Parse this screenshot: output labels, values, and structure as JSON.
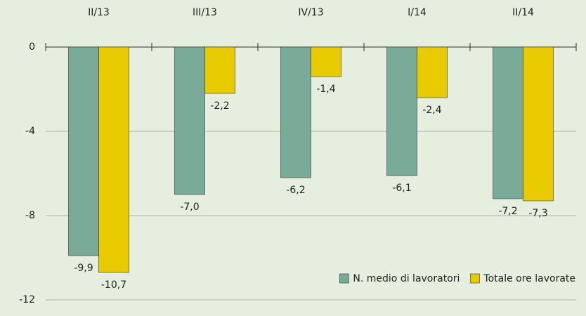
{
  "chart_data": {
    "type": "bar",
    "categories": [
      "II/13",
      "III/13",
      "IV/13",
      "I/14",
      "II/14"
    ],
    "series": [
      {
        "name": "N. medio di lavoratori",
        "color": "#7aab98",
        "values": [
          -9.9,
          -7.0,
          -6.2,
          -6.1,
          -7.2
        ],
        "value_labels": [
          "-9,9",
          "-7,0",
          "-6,2",
          "-6,1",
          "-7,2"
        ]
      },
      {
        "name": "Totale ore lavorate",
        "color": "#e8cb00",
        "values": [
          -10.7,
          -2.2,
          -1.4,
          -2.4,
          -7.3
        ],
        "value_labels": [
          "-10,7",
          "-2,2",
          "-1,4",
          "-2,4",
          "-7,3"
        ]
      }
    ],
    "ylim": [
      -12,
      0
    ],
    "yticks": [
      0,
      -4,
      -8,
      -12
    ],
    "grid": true,
    "legend": "bottom-right"
  }
}
